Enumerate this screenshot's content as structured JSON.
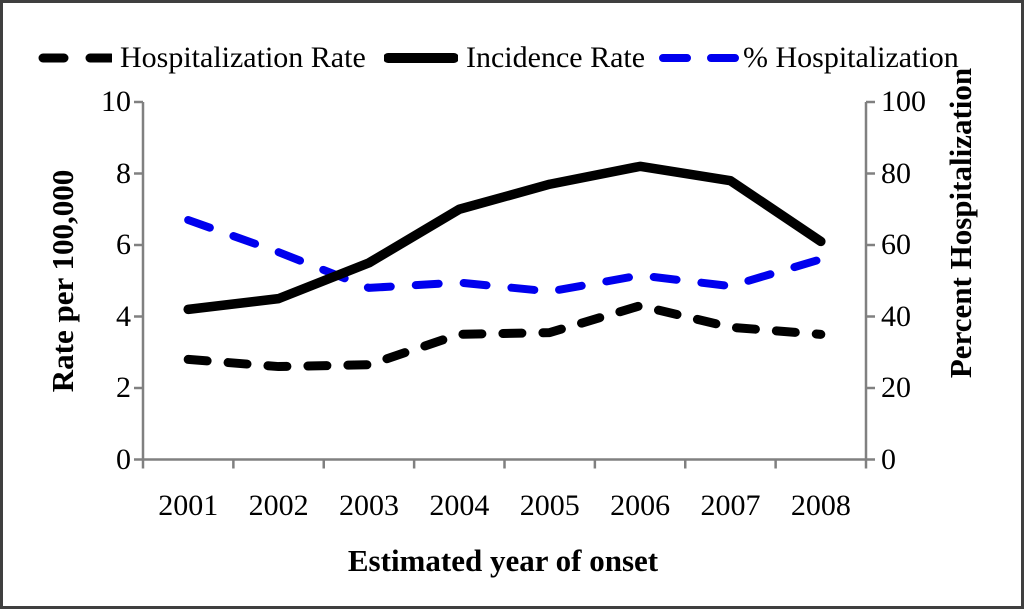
{
  "frame": {
    "background": "#ffffff",
    "border_color": "#3f3f3f"
  },
  "chart_data": {
    "type": "line",
    "title": "",
    "categories": [
      "2001",
      "2002",
      "2003",
      "2004",
      "2005",
      "2006",
      "2007",
      "2008"
    ],
    "series": [
      {
        "name": "Hospitalization Rate",
        "axis": "left",
        "color": "#000000",
        "line_style": "dashed",
        "values": [
          2.8,
          2.6,
          2.65,
          3.5,
          3.55,
          4.3,
          3.7,
          3.5
        ]
      },
      {
        "name": "Incidence Rate",
        "axis": "left",
        "color": "#000000",
        "line_style": "solid",
        "values": [
          4.2,
          4.5,
          5.5,
          7.0,
          7.7,
          8.2,
          7.8,
          6.1
        ]
      },
      {
        "name": "% Hospitalization",
        "axis": "right",
        "color": "#0000ee",
        "line_style": "dashed",
        "values": [
          67,
          58,
          48,
          49.5,
          47,
          51.5,
          48.5,
          56
        ]
      }
    ],
    "xlabel": "Estimated year of onset",
    "left_axis": {
      "label": "Rate per 100,000",
      "min": 0,
      "max": 10,
      "ticks": [
        0,
        2,
        4,
        6,
        8,
        10
      ]
    },
    "right_axis": {
      "label": "Percent Hospitalization",
      "min": 0,
      "max": 100,
      "ticks": [
        0,
        20,
        40,
        60,
        80,
        100
      ]
    },
    "legend_position": "top",
    "grid": false,
    "axis_color": "#808080"
  }
}
